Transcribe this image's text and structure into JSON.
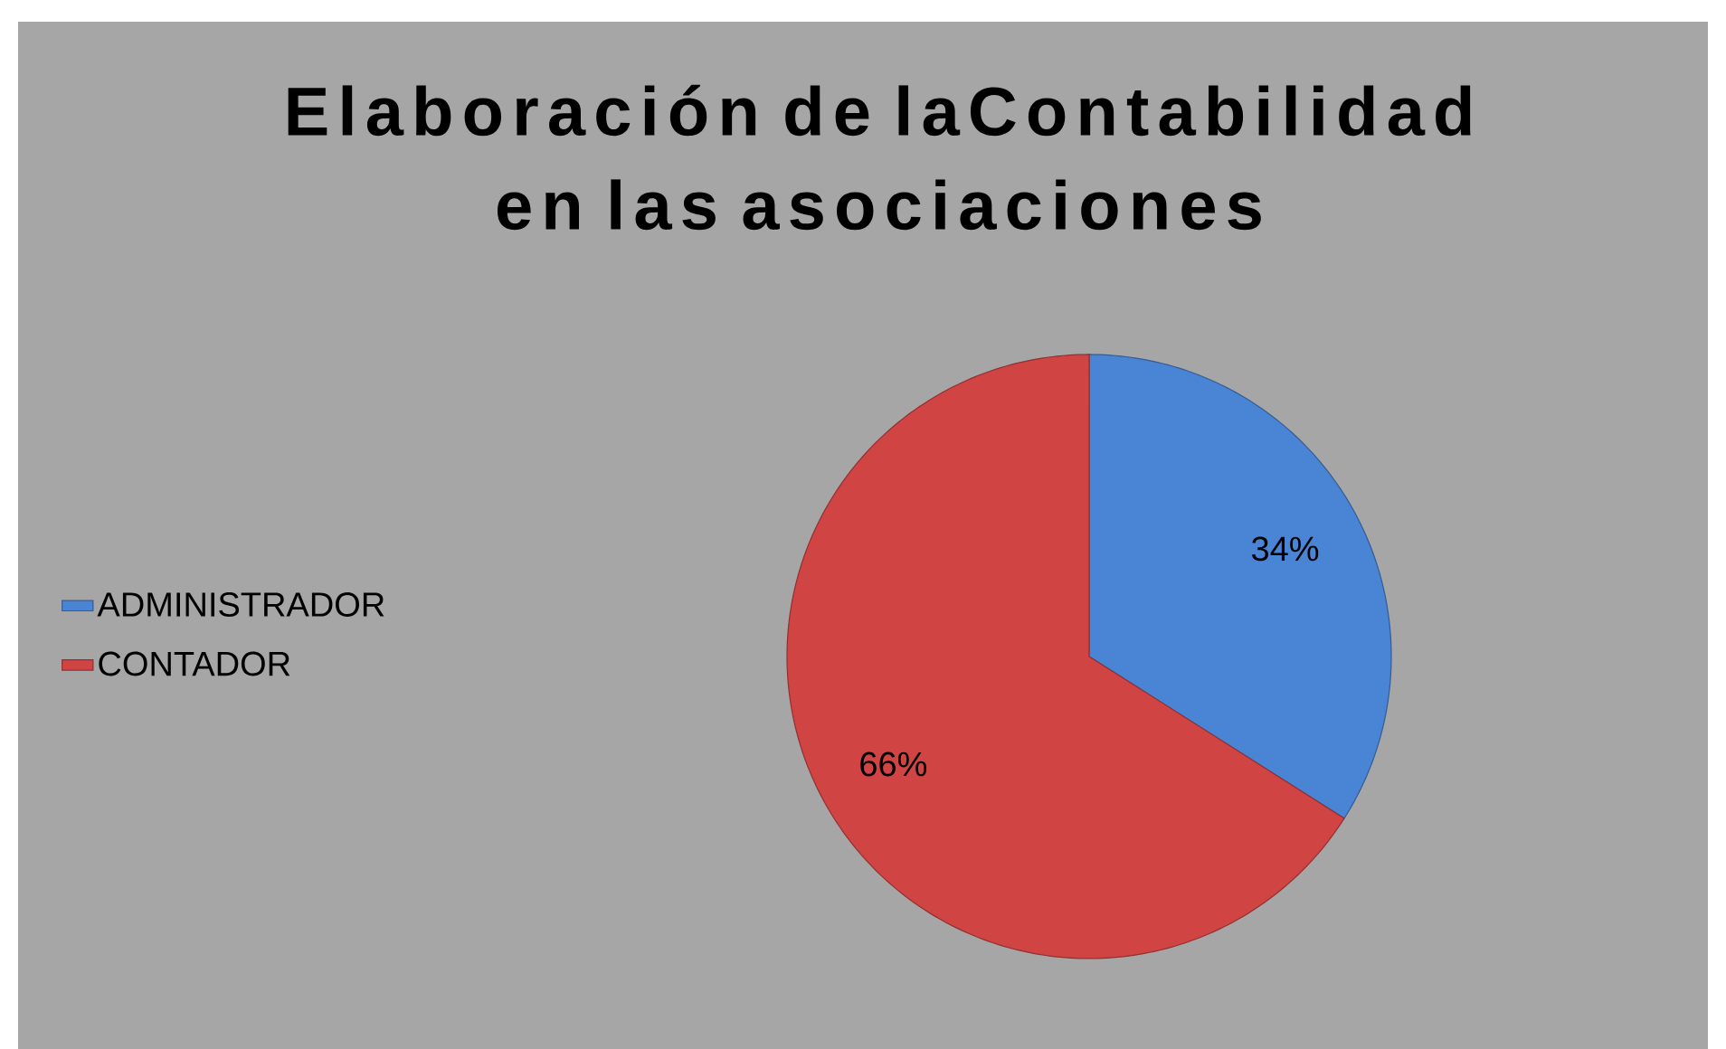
{
  "chart_data": {
    "type": "pie",
    "title": "Elaboración de laContabilidad en las asociaciones",
    "categories": [
      "ADMINISTRADOR",
      "CONTADOR"
    ],
    "values": [
      34,
      66
    ],
    "value_labels": [
      "34%",
      "66%"
    ],
    "colors": [
      "#4a84d4",
      "#d04444"
    ],
    "legend": "left"
  }
}
